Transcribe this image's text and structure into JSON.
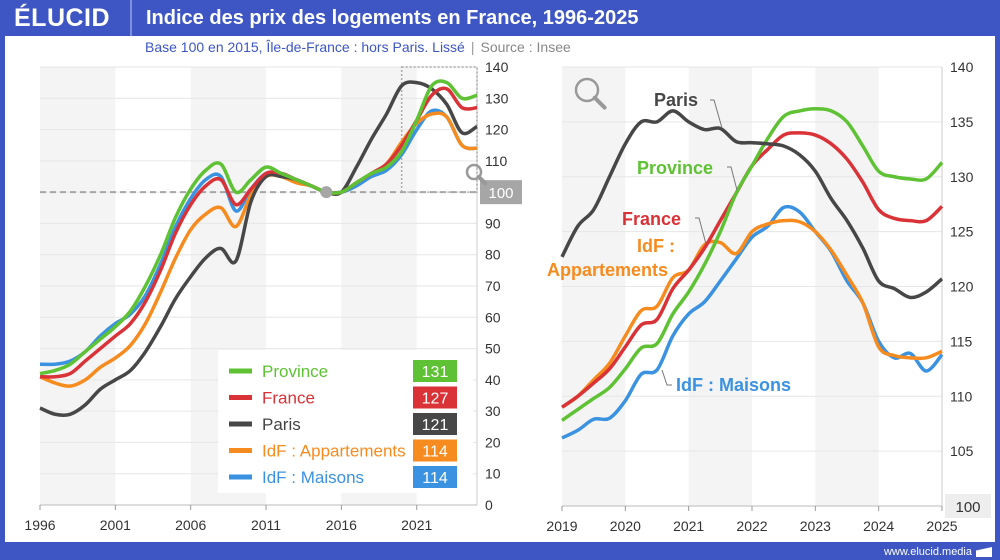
{
  "header": {
    "logo": "ÉLUCID",
    "title": "Indice des prix des logements en France, 1996-2025"
  },
  "subtitle": {
    "text": "Base 100 en 2015, Île-de-France : hors Paris. Lissé",
    "separator": "|",
    "source": "Source : Insee"
  },
  "footer": {
    "url": "www.elucid.media"
  },
  "colors": {
    "Province": "#5ec234",
    "France": "#d93237",
    "Paris": "#474747",
    "IdF : Appartements": "#f68b1f",
    "IdF : Maisons": "#3a92e0",
    "frame": "#3d56c4",
    "band": "#f4f4f4",
    "reference": "#a6a6a6"
  },
  "icons": [
    "magnifier-icon",
    "magnifier-icon"
  ],
  "chart_data": [
    {
      "type": "line",
      "title": "",
      "xlim": [
        1996,
        2025
      ],
      "ylim": [
        0,
        140
      ],
      "x_ticks": [
        1996,
        2001,
        2006,
        2011,
        2016,
        2021
      ],
      "y_ticks": [
        0,
        10,
        20,
        30,
        40,
        50,
        60,
        70,
        80,
        90,
        100,
        110,
        120,
        130,
        140
      ],
      "highlight_tick": 100,
      "reference_line": {
        "y": 100,
        "x": 2015
      },
      "zoom_box": {
        "x": [
          2020,
          2025
        ],
        "y": [
          100,
          140
        ]
      },
      "grid": true,
      "legend_placement": "bottom-right",
      "x": [
        1996,
        1997,
        1998,
        1999,
        2000,
        2001,
        2002,
        2003,
        2004,
        2005,
        2006,
        2007,
        2008,
        2009,
        2010,
        2011,
        2012,
        2013,
        2014,
        2015,
        2016,
        2017,
        2018,
        2019,
        2020,
        2021,
        2022,
        2023,
        2024,
        2025
      ],
      "series": [
        {
          "name": "Province",
          "last": "131",
          "values": [
            42,
            43,
            45,
            49,
            53,
            57,
            62,
            70,
            80,
            92,
            101,
            107,
            109,
            100,
            104,
            108,
            106,
            104,
            102,
            100,
            100,
            103,
            106,
            108,
            113,
            123,
            134,
            135,
            130,
            131
          ]
        },
        {
          "name": "France",
          "last": "127",
          "values": [
            41,
            41,
            42,
            46,
            50,
            54,
            58,
            65,
            75,
            87,
            96,
            102,
            104,
            96,
            101,
            106,
            106,
            104,
            102,
            100,
            100,
            103,
            106,
            109,
            115,
            123,
            131,
            133,
            127,
            127
          ]
        },
        {
          "name": "Paris",
          "last": "121",
          "values": [
            31,
            29,
            29,
            32,
            37,
            40,
            43,
            49,
            57,
            66,
            73,
            79,
            82,
            78,
            97,
            105,
            105,
            104,
            102,
            100,
            100,
            108,
            117,
            125,
            134,
            135,
            133,
            128,
            119,
            121
          ]
        },
        {
          "name": "IdF : Appartements",
          "last": "114",
          "values": [
            41,
            39,
            38,
            40,
            44,
            47,
            51,
            58,
            68,
            79,
            88,
            93,
            95,
            89,
            99,
            105,
            105,
            103,
            102,
            100,
            100,
            103,
            106,
            109,
            116,
            122,
            125,
            124,
            115,
            114
          ]
        },
        {
          "name": "IdF : Maisons",
          "last": "114",
          "values": [
            45,
            45,
            46,
            49,
            54,
            58,
            61,
            67,
            77,
            89,
            98,
            104,
            105,
            94,
            101,
            106,
            106,
            104,
            102,
            100,
            100,
            102,
            105,
            107,
            112,
            120,
            126,
            124,
            115,
            114
          ]
        }
      ]
    },
    {
      "type": "line",
      "title": "",
      "xlim": [
        2019,
        2025
      ],
      "ylim": [
        100,
        140
      ],
      "x_ticks": [
        2019,
        2020,
        2021,
        2022,
        2023,
        2024,
        2025
      ],
      "y_ticks": [
        100,
        105,
        110,
        115,
        120,
        125,
        130,
        135,
        140
      ],
      "highlight_tick": 100,
      "grid": true,
      "x": [
        2019,
        2019.25,
        2019.5,
        2019.75,
        2020,
        2020.25,
        2020.5,
        2020.75,
        2021,
        2021.25,
        2021.5,
        2021.75,
        2022,
        2022.25,
        2022.5,
        2022.75,
        2023,
        2023.25,
        2023.5,
        2023.75,
        2024,
        2024.25,
        2024.5,
        2024.75,
        2025
      ],
      "series": [
        {
          "name": "Paris",
          "values": [
            122.7,
            125.5,
            127,
            130,
            133,
            135,
            135,
            136,
            135,
            134.3,
            134.4,
            133.2,
            133.1,
            133,
            132.8,
            132,
            130.5,
            128,
            126,
            123.5,
            120.5,
            119.8,
            119,
            119.5,
            120.7
          ]
        },
        {
          "name": "Province",
          "values": [
            107.8,
            108.8,
            109.8,
            110.8,
            112.5,
            114.4,
            114.8,
            117.5,
            119.5,
            122,
            125,
            128.5,
            131,
            133.5,
            135.5,
            136,
            136.2,
            136,
            135,
            132.8,
            130.5,
            130,
            129.8,
            129.8,
            131.3
          ]
        },
        {
          "name": "France",
          "values": [
            109,
            110,
            111.2,
            112.5,
            114.5,
            116.5,
            117,
            119.8,
            121.5,
            123.5,
            126,
            128.5,
            131,
            132.5,
            133.8,
            134,
            133.8,
            133,
            131.6,
            129.5,
            127,
            126.2,
            126,
            126,
            127.3
          ]
        },
        {
          "name": "IdF : Appartements",
          "values": [
            109,
            110,
            111.5,
            113,
            115.5,
            117.8,
            118.2,
            120.8,
            121.5,
            123.8,
            124,
            123,
            125,
            125.7,
            126,
            125.9,
            125,
            123.3,
            121,
            118.5,
            114.5,
            113.7,
            113.5,
            113.5,
            114.1
          ]
        },
        {
          "name": "IdF : Maisons",
          "values": [
            106.2,
            106.9,
            107.9,
            108,
            109.6,
            112,
            112.4,
            115.5,
            117.5,
            118.6,
            120.5,
            122.5,
            124.5,
            125.5,
            127.2,
            126.8,
            125,
            123.2,
            120.5,
            118.5,
            115,
            113.5,
            113.9,
            112.3,
            113.8
          ]
        }
      ],
      "annotations": [
        {
          "text": "Paris",
          "series": "Paris"
        },
        {
          "text": "Province",
          "series": "Province"
        },
        {
          "text": "France",
          "series": "France"
        },
        {
          "text": "IdF :",
          "series": "IdF : Appartements"
        },
        {
          "text": "Appartements",
          "series": "IdF : Appartements"
        },
        {
          "text": "IdF : Maisons",
          "series": "IdF : Maisons"
        }
      ]
    }
  ]
}
